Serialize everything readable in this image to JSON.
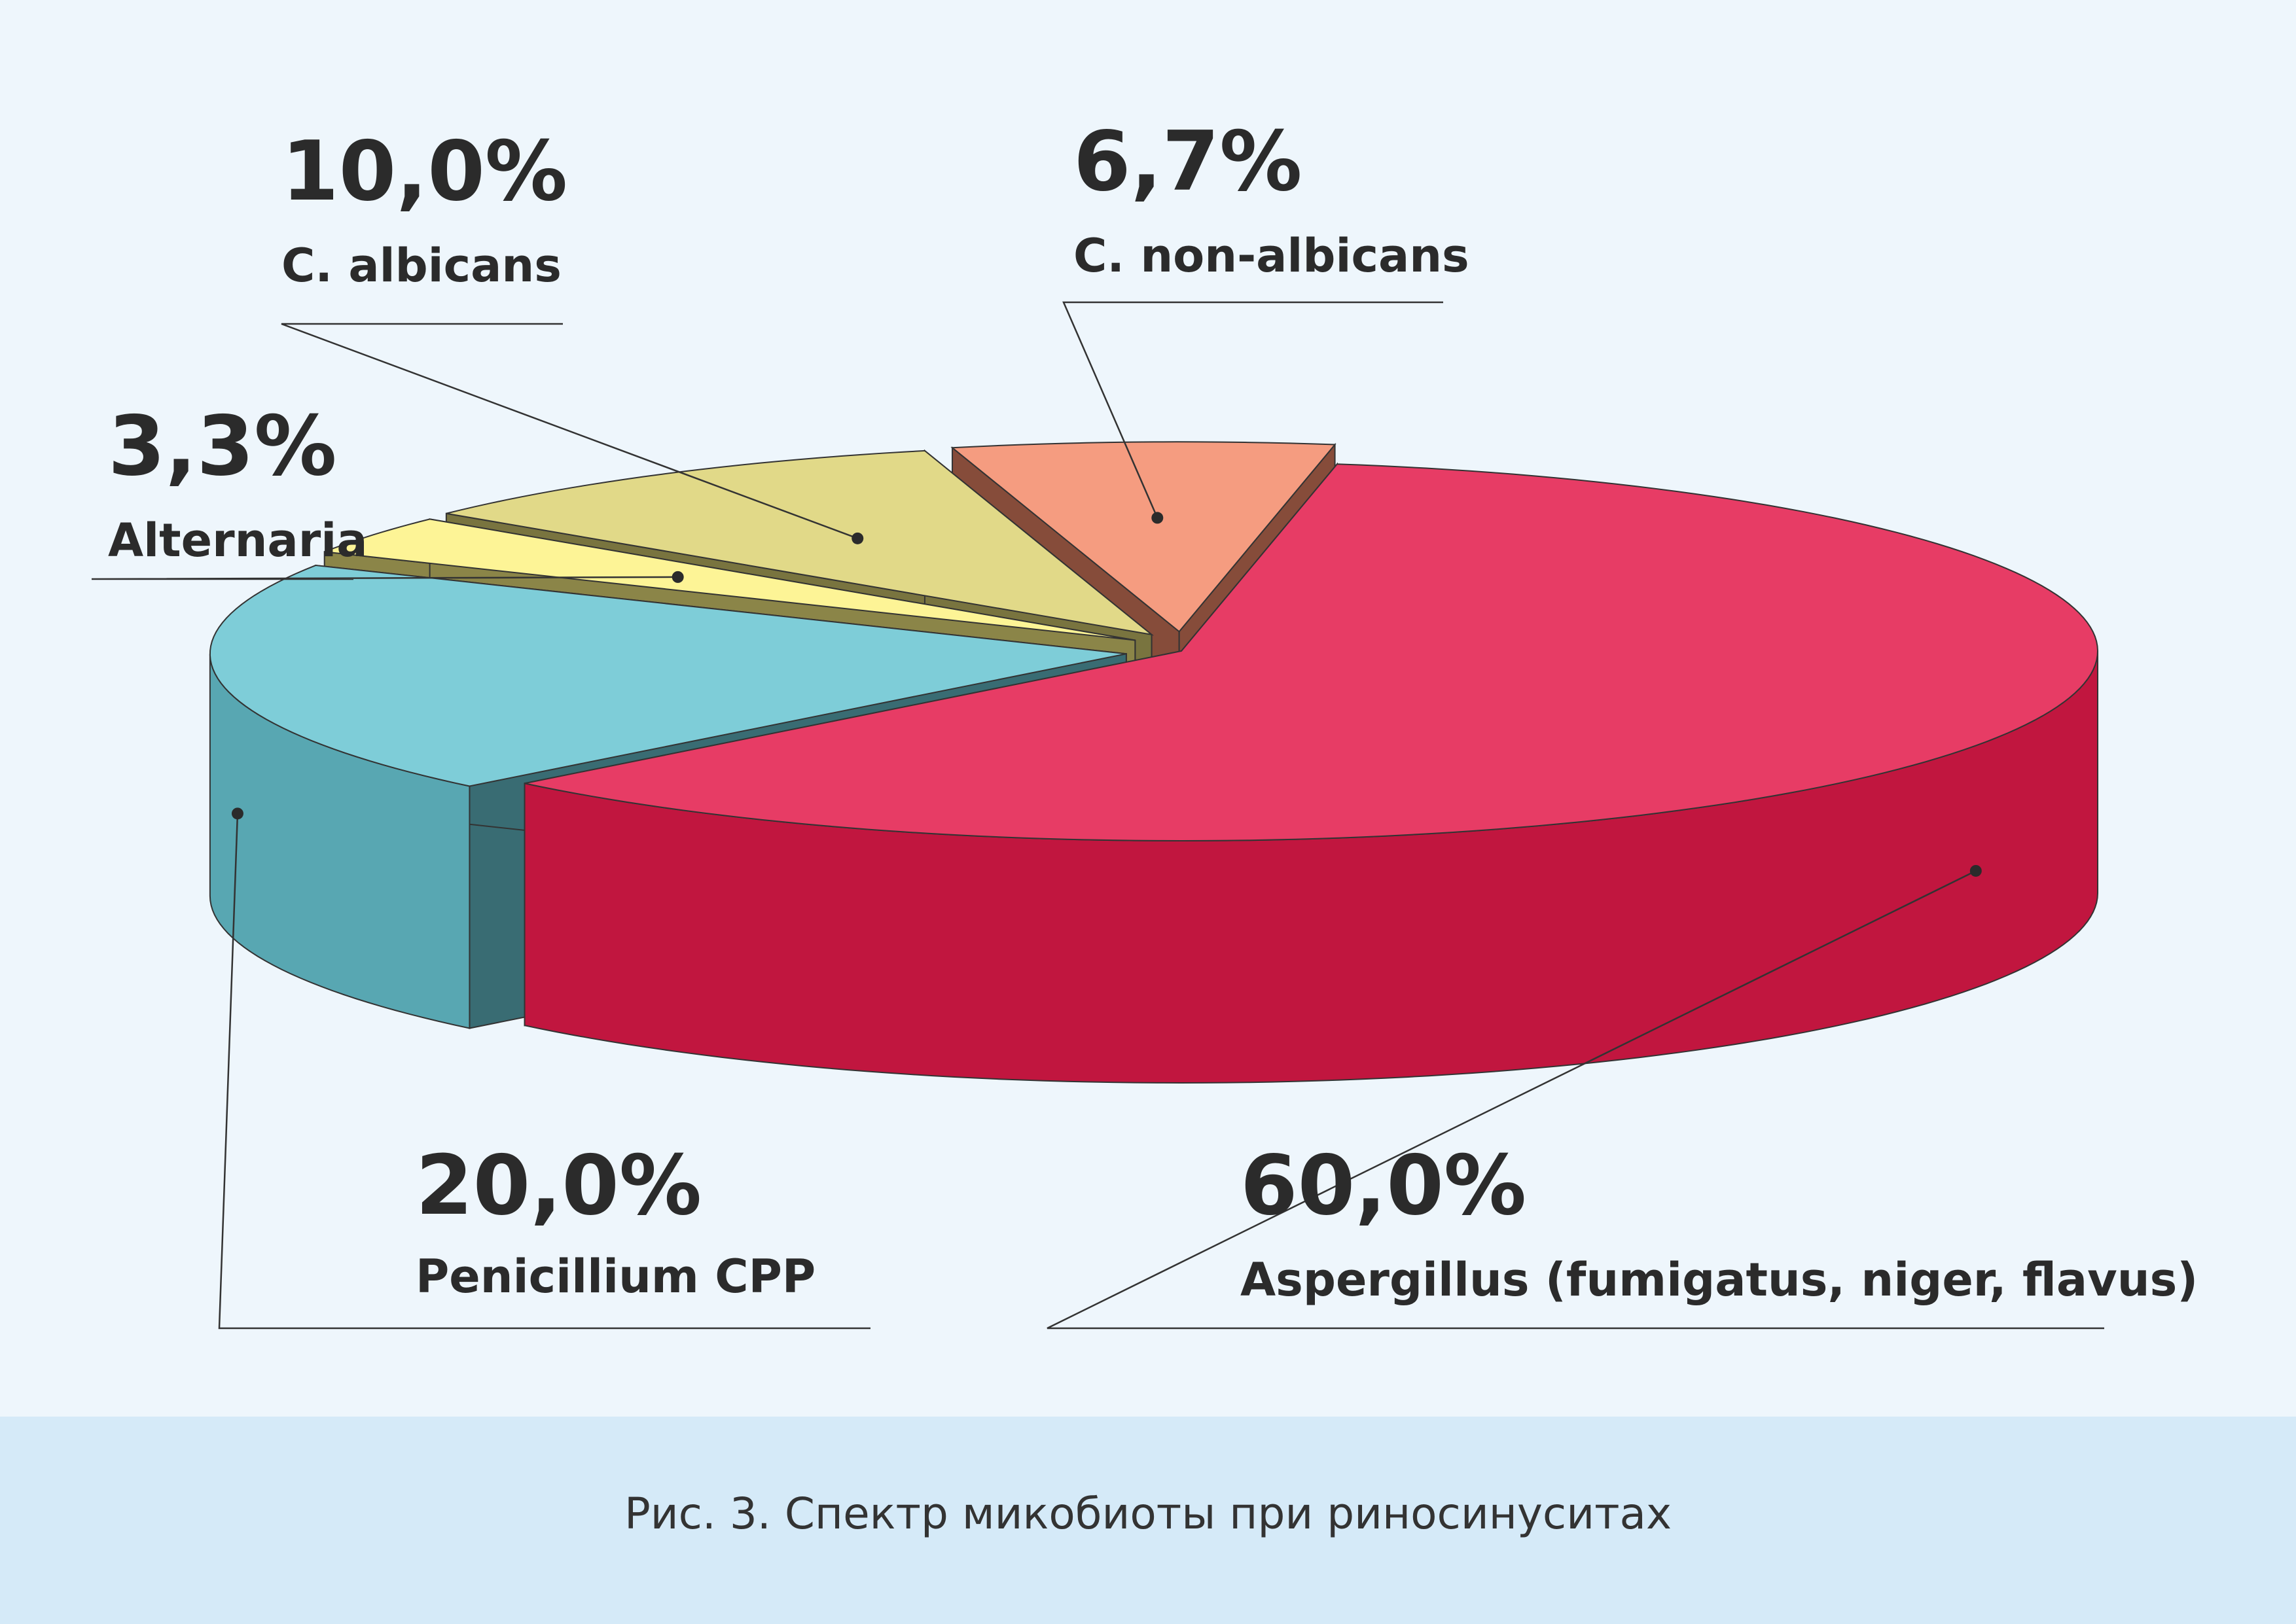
{
  "chart_data": {
    "type": "pie",
    "style": "3d-exploded",
    "slices": [
      {
        "name": "Aspergillus (fumigatus, niger, flavus)",
        "value": 60.0,
        "label": "60,0%",
        "color": "#e31a4a"
      },
      {
        "name": "Penicillium CPP",
        "value": 20.0,
        "label": "20,0%",
        "color": "#67c4d1"
      },
      {
        "name": "Alternaria",
        "value": 3.3,
        "label": "3,3%",
        "color": "#fdf283"
      },
      {
        "name": "C. albicans",
        "value": 10.0,
        "label": "10,0%",
        "color": "#dcd273"
      },
      {
        "name": "C. non-albicans",
        "value": 6.7,
        "label": "6,7%",
        "color": "#f38a6a"
      }
    ],
    "legend": "none"
  },
  "caption": "Рис. 3. Спектр микобиоты при риносинуситах"
}
